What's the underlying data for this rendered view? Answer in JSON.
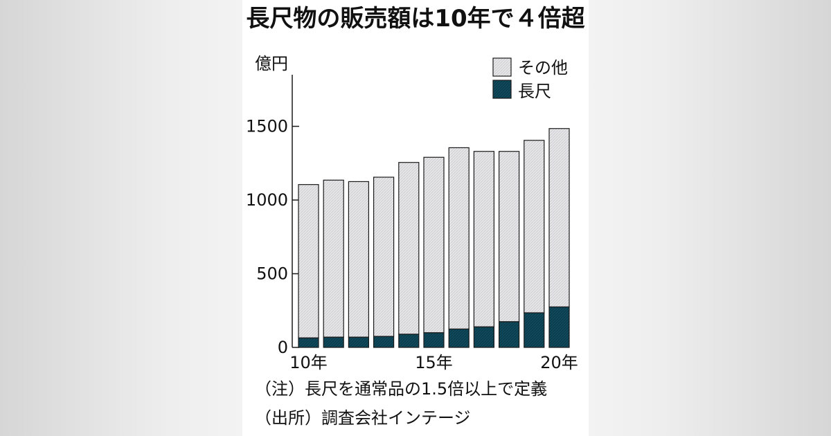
{
  "chart_data": {
    "type": "bar",
    "stacked": true,
    "title": "長尺物の販売額は10年で４倍超",
    "unit_label": "億円",
    "categories": [
      "10年",
      "11",
      "12",
      "13",
      "14",
      "15年",
      "16",
      "17",
      "18",
      "19",
      "20年"
    ],
    "x_tick_labels": [
      "10年",
      "15年",
      "20年"
    ],
    "y_ticks": [
      0,
      500,
      1000,
      1500
    ],
    "ylim": [
      0,
      1850
    ],
    "grid": false,
    "legend_position": "top-right",
    "series": [
      {
        "name": "長尺",
        "color": "#0f4a5c",
        "values": [
          65,
          70,
          70,
          75,
          90,
          100,
          125,
          140,
          175,
          235,
          275
        ]
      },
      {
        "name": "その他",
        "color": "#e3e3e6",
        "values": [
          1040,
          1065,
          1055,
          1080,
          1165,
          1190,
          1230,
          1190,
          1155,
          1170,
          1210
        ]
      }
    ],
    "totals": [
      1105,
      1135,
      1125,
      1155,
      1255,
      1290,
      1355,
      1330,
      1330,
      1405,
      1485
    ]
  },
  "footnotes": {
    "note": "（注）長尺を通常品の1.5倍以上で定義",
    "source": "（出所）調査会社インテージ"
  },
  "colors": {
    "long_fill": "#0f4a5c",
    "other_fill": "#e3e3e6",
    "stroke": "#1a1a1a"
  }
}
